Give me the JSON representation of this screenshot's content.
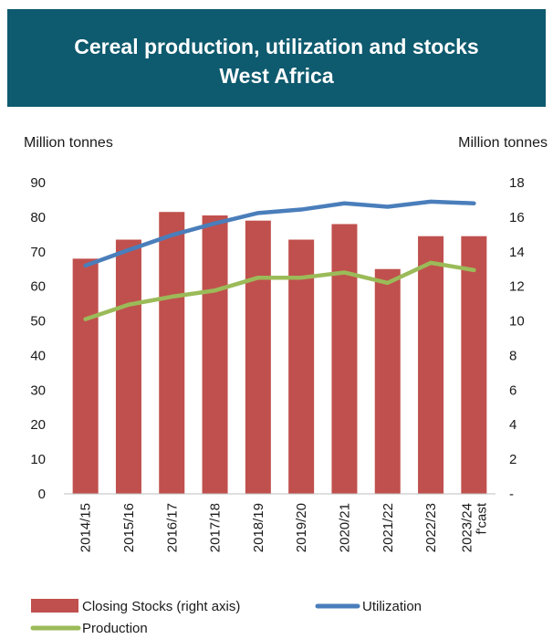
{
  "header": {
    "title_line1": "Cereal production, utilization and stocks",
    "title_line2": "West Africa",
    "background": "#0e5a6e"
  },
  "chart_data": {
    "type": "bar",
    "categories": [
      "2014/15",
      "2015/16",
      "2016/17",
      "2017/18",
      "2018/19",
      "2019/20",
      "2020/21",
      "2021/22",
      "2022/23",
      "2023/24"
    ],
    "category_labels": [
      [
        "2014/15"
      ],
      [
        "2015/16"
      ],
      [
        "2016/17"
      ],
      [
        "2017/18"
      ],
      [
        "2018/19"
      ],
      [
        "2019/20"
      ],
      [
        "2020/21"
      ],
      [
        "2021/22"
      ],
      [
        "2022/23"
      ],
      [
        "2023/24",
        "f'cast"
      ]
    ],
    "left_axis": {
      "unit_label": "Million tonnes",
      "ylim": [
        0,
        90
      ],
      "ticks": [
        "0",
        "10",
        "20",
        "30",
        "40",
        "50",
        "60",
        "70",
        "80",
        "90"
      ]
    },
    "right_axis": {
      "unit_label": "Million tonnes",
      "ylim": [
        0,
        18
      ],
      "ticks": [
        "-",
        "2",
        "4",
        "6",
        "8",
        "10",
        "12",
        "14",
        "16",
        "18"
      ]
    },
    "series": [
      {
        "name": "Closing Stocks (right axis)",
        "type": "bar",
        "axis": "right",
        "color": "#c0504d",
        "values": [
          13.6,
          14.7,
          16.3,
          16.1,
          15.8,
          14.7,
          15.6,
          13.0,
          14.9,
          14.9
        ]
      },
      {
        "name": "Utilization",
        "type": "line",
        "axis": "left",
        "color": "#4a7ebb",
        "values": [
          66.0,
          70.5,
          74.8,
          78.2,
          81.2,
          82.2,
          84.0,
          83.0,
          84.5,
          84.0
        ]
      },
      {
        "name": "Production",
        "type": "line",
        "axis": "left",
        "color": "#9bbb59",
        "values": [
          50.5,
          54.7,
          57.0,
          58.8,
          62.5,
          62.5,
          64.0,
          61.0,
          66.8,
          64.7
        ]
      }
    ],
    "legend_position": "bottom",
    "grid": false
  }
}
